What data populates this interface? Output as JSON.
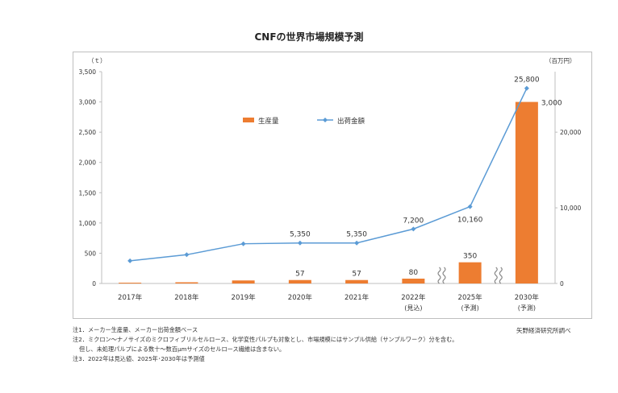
{
  "title": "CNFの世界市場規模予測",
  "chart_data": {
    "type": "bar+line",
    "categories": [
      "2017年",
      "2018年",
      "2019年",
      "2020年",
      "2021年",
      "2022年",
      "2025年",
      "2030年"
    ],
    "category_sublabels": [
      "",
      "",
      "",
      "",
      "",
      "(見込)",
      "(予測)",
      "(予測)"
    ],
    "left_axis": {
      "unit": "（ｔ）",
      "min": 0,
      "max": 3500,
      "step": 500,
      "ticks": [
        "0",
        "500",
        "1,000",
        "1,500",
        "2,000",
        "2,500",
        "3,000",
        "3,500"
      ]
    },
    "right_axis": {
      "unit": "（百万円）",
      "min": 0,
      "max": 28000,
      "ticks_values": [
        0,
        10000,
        20000
      ],
      "ticks": [
        "0",
        "10,000",
        "20,000"
      ]
    },
    "series": [
      {
        "name": "生産量",
        "kind": "bar",
        "axis": "left",
        "color": "#ed7d31",
        "values": [
          13,
          20,
          50,
          57,
          57,
          80,
          350,
          3000
        ],
        "data_labels": [
          "",
          "",
          "",
          "57",
          "57",
          "80",
          "350",
          "3,000"
        ]
      },
      {
        "name": "出荷金額",
        "kind": "line",
        "axis": "right",
        "color": "#5b9bd5",
        "values": [
          3000,
          3800,
          5250,
          5350,
          5350,
          7200,
          10160,
          25800
        ],
        "data_labels": [
          "",
          "",
          "",
          "5,350",
          "5,350",
          "7,200",
          "10,160",
          "25,800"
        ]
      }
    ],
    "axis_breaks_after": [
      "2022年",
      "2025年"
    ],
    "legend_position": "top-center",
    "grid": false
  },
  "notes": [
    "注1．メーカー生産量、メーカー出荷金額ベース",
    "注2．ミクロン～ナノサイズのミクロフィブリルセルロース、化学変性パルプも対象とし、市場規模にはサンプル供給（サンプルワーク）分を含む。",
    "但し、未処理パルプによる数十～数百μmサイズのセルロース繊維は含まない。",
    "注3．2022年は見込値、2025年･2030年は予測値"
  ],
  "source": "矢野経済研究所調べ"
}
